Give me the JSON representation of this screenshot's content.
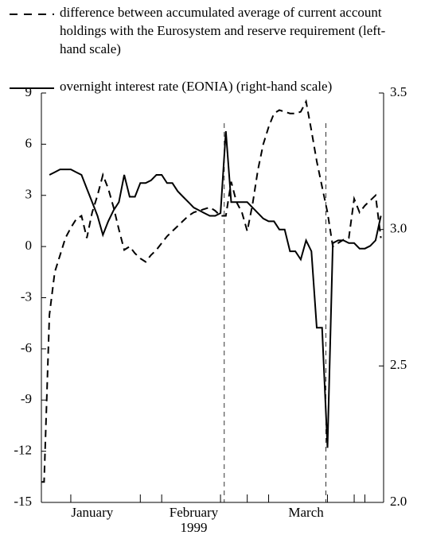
{
  "chart_data": {
    "type": "line",
    "categories": [
      null,
      null,
      null,
      null,
      null,
      null,
      null,
      null,
      null,
      "January",
      null,
      null,
      null,
      null,
      null,
      null,
      null,
      null,
      null,
      null,
      null,
      null,
      null,
      null,
      null,
      null,
      null,
      null,
      "February",
      null,
      null,
      null,
      null,
      null,
      null,
      null,
      null,
      null,
      null,
      null,
      null,
      null,
      null,
      null,
      null,
      null,
      null,
      null,
      null,
      "March",
      null,
      null,
      null,
      null,
      null,
      null,
      null,
      null,
      null,
      null,
      null,
      null,
      null,
      null
    ],
    "xlabel": "1999",
    "series": [
      {
        "name": "difference between accumulated average of current account holdings with the Eurosystem and reserve requirement (left-hand scale)",
        "color": "#000000",
        "line_style": "dashed",
        "values": [
          -13.8,
          -4,
          -1.5,
          -0.5,
          0.5,
          1.1,
          1.6,
          1.8,
          0.5,
          2.0,
          3.0,
          4.2,
          3.4,
          2.3,
          1.0,
          -0.2,
          0.0,
          -0.4,
          -0.7,
          -0.9,
          -0.5,
          -0.2,
          0.2,
          0.6,
          0.9,
          1.2,
          1.5,
          1.8,
          2.0,
          2.1,
          2.2,
          2.3,
          2.1,
          1.8,
          1.8,
          3.8,
          2.6,
          2.0,
          0.9,
          2.5,
          4.5,
          6.0,
          7.0,
          7.8,
          8.0,
          7.9,
          7.8,
          7.8,
          7.9,
          8.5,
          6.8,
          5.0,
          3.5,
          2.0,
          0.0,
          0.2,
          0.4,
          0.5,
          2.8,
          2.0,
          2.4,
          2.7,
          3.0,
          0.5
        ]
      },
      {
        "name": "overnight interest rate (EONIA) (right-hand scale)",
        "color": "#000000",
        "line_style": "solid",
        "axis": "y2",
        "values": [
          null,
          3.2,
          3.21,
          3.22,
          3.22,
          3.22,
          3.21,
          3.2,
          3.15,
          3.1,
          3.05,
          2.98,
          3.03,
          3.07,
          3.1,
          3.2,
          3.12,
          3.12,
          3.17,
          3.17,
          3.18,
          3.2,
          3.2,
          3.17,
          3.17,
          3.14,
          3.12,
          3.1,
          3.08,
          3.07,
          3.06,
          3.05,
          3.05,
          3.06,
          3.36,
          3.1,
          3.1,
          3.1,
          3.1,
          3.08,
          3.06,
          3.04,
          3.03,
          3.03,
          3.0,
          3.0,
          2.92,
          2.92,
          2.89,
          2.96,
          2.92,
          2.64,
          2.64,
          2.2,
          2.95,
          2.96,
          2.96,
          2.95,
          2.95,
          2.93,
          2.93,
          2.94,
          2.96,
          3.05
        ]
      }
    ],
    "ylim": [
      -15,
      9
    ],
    "yticks": [
      -15,
      -12,
      -9,
      -6,
      -3,
      0,
      3,
      6,
      9
    ],
    "y2lim": [
      2.0,
      3.5
    ],
    "y2ticks": [
      {
        "value": 2.0,
        "label": "2.0"
      },
      {
        "value": 2.5,
        "label": "2.5"
      },
      {
        "value": 3.0,
        "label": "3.0"
      },
      {
        "value": 3.5,
        "label": "3.5"
      }
    ],
    "grid": false
  }
}
